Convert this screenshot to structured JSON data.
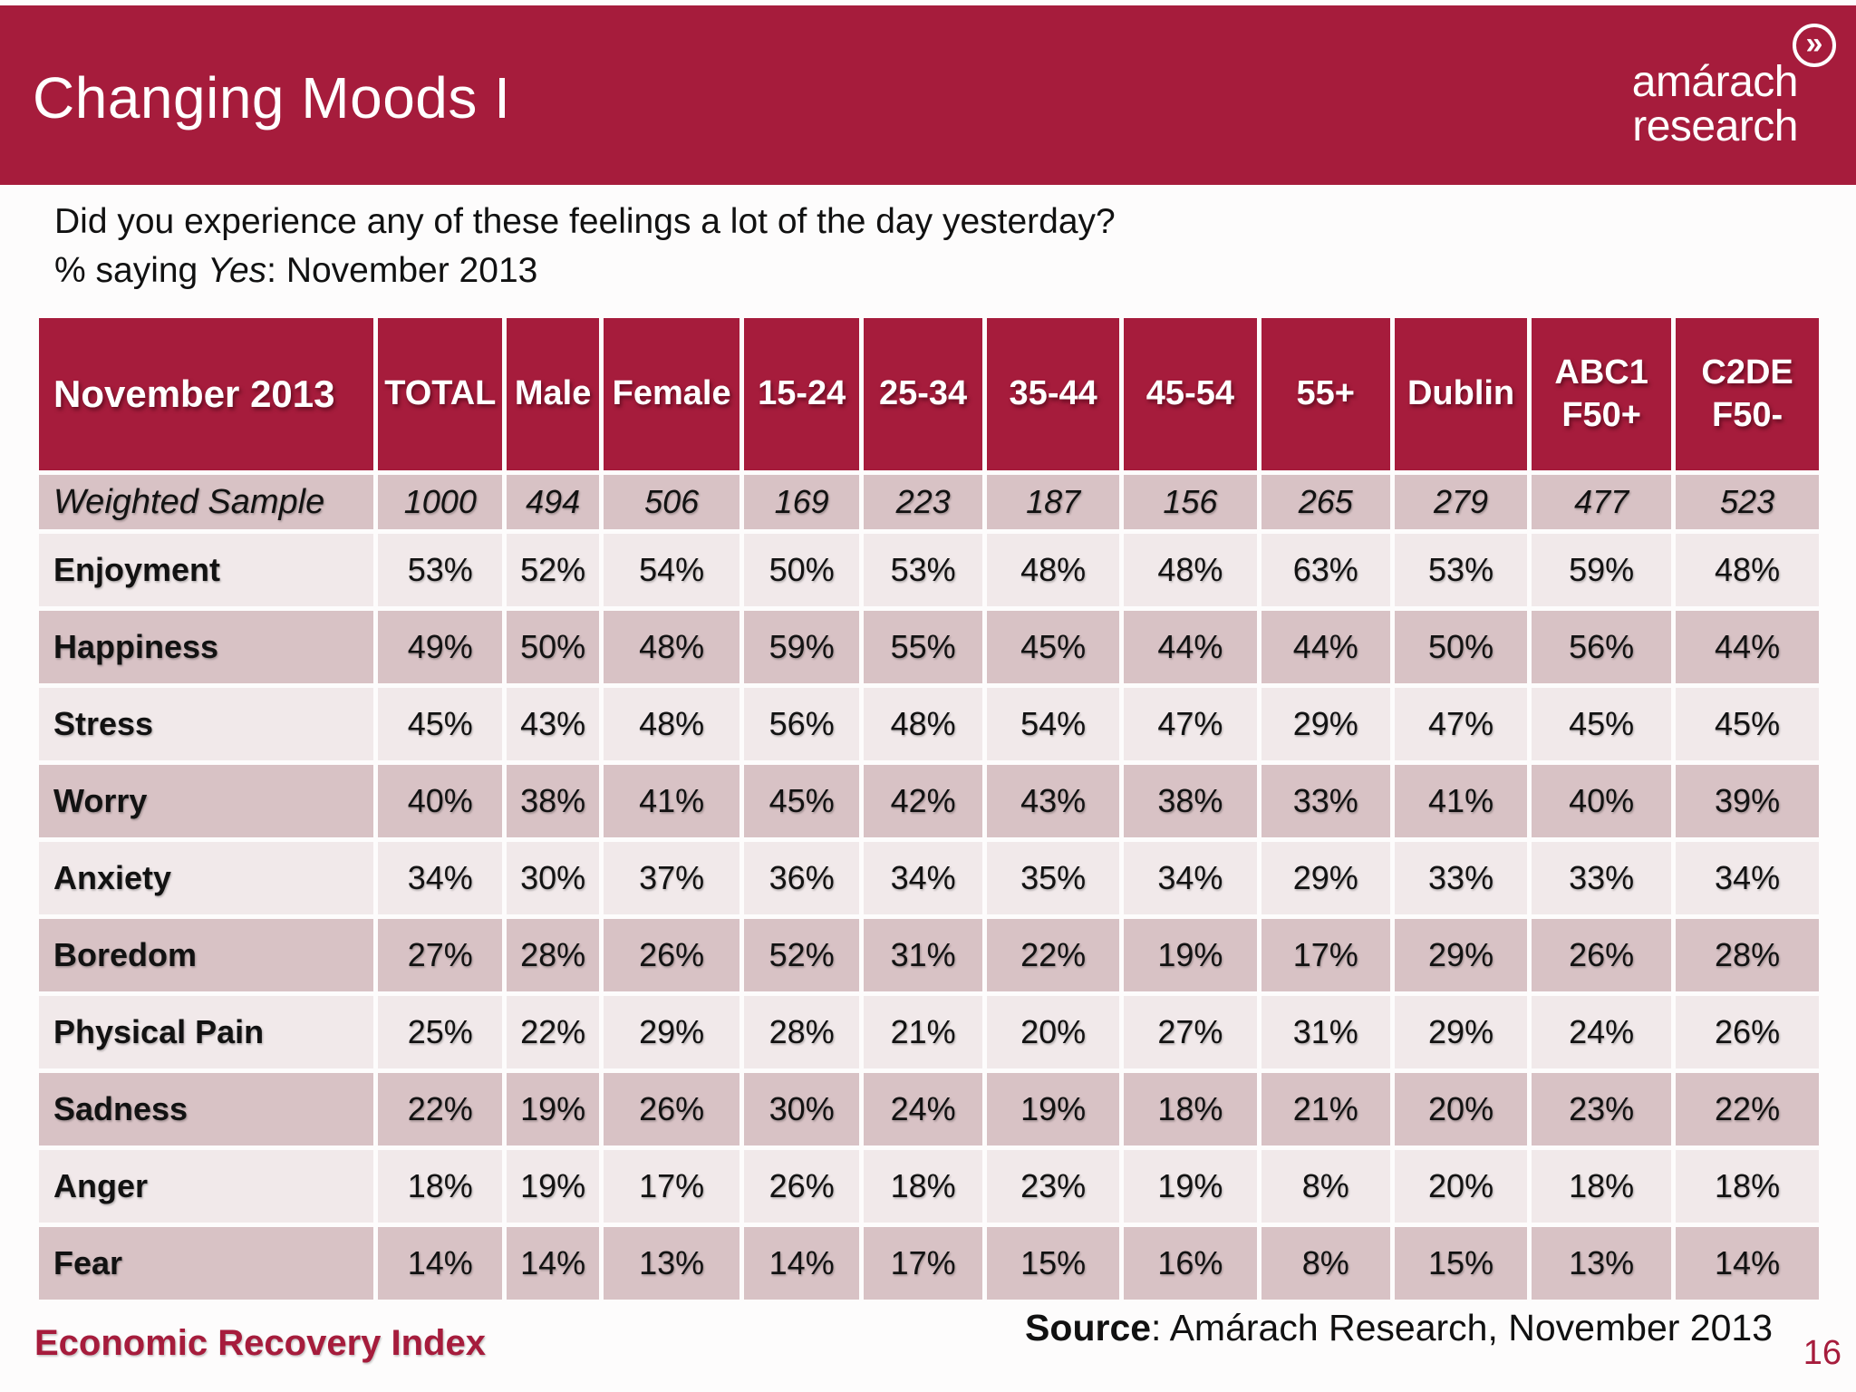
{
  "slide": {
    "title": "Changing Moods I",
    "logo_line1": "amárach",
    "logo_line2": "research",
    "logo_icon_glyph": "»",
    "subtitle_line1": "Did you experience any of these feelings a lot of the day yesterday?",
    "subtitle_line2_prefix": "% saying ",
    "subtitle_line2_italic": "Yes",
    "subtitle_line2_suffix": ": November 2013",
    "footer_left": "Economic Recovery Index",
    "source_label": "Source",
    "source_rest": ": Amárach Research, November 2013",
    "page_number": "16"
  },
  "colors": {
    "brand_red": "#A61C3C",
    "dark_row": "#D8C2C5",
    "light_row": "#F1E9EA",
    "header_text": "#FFFFFF",
    "body_text": "#121212"
  },
  "chart_data": {
    "type": "table",
    "title": "Changing Moods I — % saying Yes, November 2013",
    "columns": [
      "November 2013",
      "TOTAL",
      "Male",
      "Female",
      "15-24",
      "25-34",
      "35-44",
      "45-54",
      "55+",
      "Dublin",
      "ABC1\nF50+",
      "C2DE\nF50-"
    ],
    "rows": [
      {
        "label": "Weighted Sample",
        "values": [
          "1000",
          "494",
          "506",
          "169",
          "223",
          "187",
          "156",
          "265",
          "279",
          "477",
          "523"
        ]
      },
      {
        "label": "Enjoyment",
        "values": [
          "53%",
          "52%",
          "54%",
          "50%",
          "53%",
          "48%",
          "48%",
          "63%",
          "53%",
          "59%",
          "48%"
        ]
      },
      {
        "label": "Happiness",
        "values": [
          "49%",
          "50%",
          "48%",
          "59%",
          "55%",
          "45%",
          "44%",
          "44%",
          "50%",
          "56%",
          "44%"
        ]
      },
      {
        "label": "Stress",
        "values": [
          "45%",
          "43%",
          "48%",
          "56%",
          "48%",
          "54%",
          "47%",
          "29%",
          "47%",
          "45%",
          "45%"
        ]
      },
      {
        "label": "Worry",
        "values": [
          "40%",
          "38%",
          "41%",
          "45%",
          "42%",
          "43%",
          "38%",
          "33%",
          "41%",
          "40%",
          "39%"
        ]
      },
      {
        "label": "Anxiety",
        "values": [
          "34%",
          "30%",
          "37%",
          "36%",
          "34%",
          "35%",
          "34%",
          "29%",
          "33%",
          "33%",
          "34%"
        ]
      },
      {
        "label": "Boredom",
        "values": [
          "27%",
          "28%",
          "26%",
          "52%",
          "31%",
          "22%",
          "19%",
          "17%",
          "29%",
          "26%",
          "28%"
        ]
      },
      {
        "label": "Physical Pain",
        "values": [
          "25%",
          "22%",
          "29%",
          "28%",
          "21%",
          "20%",
          "27%",
          "31%",
          "29%",
          "24%",
          "26%"
        ]
      },
      {
        "label": "Sadness",
        "values": [
          "22%",
          "19%",
          "26%",
          "30%",
          "24%",
          "19%",
          "18%",
          "21%",
          "20%",
          "23%",
          "22%"
        ]
      },
      {
        "label": "Anger",
        "values": [
          "18%",
          "19%",
          "17%",
          "26%",
          "18%",
          "23%",
          "19%",
          "8%",
          "20%",
          "18%",
          "18%"
        ]
      },
      {
        "label": "Fear",
        "values": [
          "14%",
          "14%",
          "13%",
          "14%",
          "17%",
          "15%",
          "16%",
          "8%",
          "15%",
          "13%",
          "14%"
        ]
      }
    ]
  }
}
